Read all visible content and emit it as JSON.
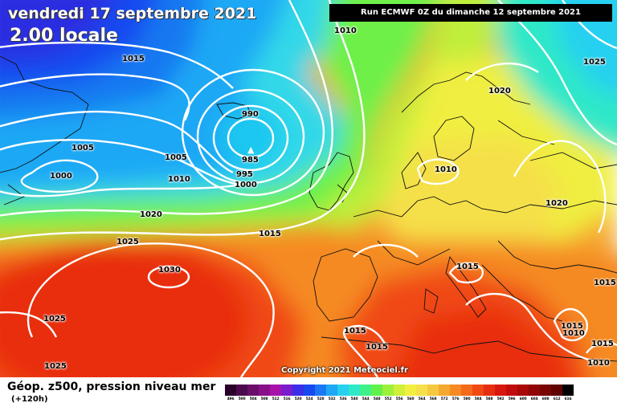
{
  "header": {
    "valid_date": "vendredi 17 septembre 2021",
    "valid_time": "2.00 locale",
    "run_info": "Run ECMWF 0Z du dimanche 12 septembre 2021"
  },
  "footer": {
    "field_title": "Géop. z500, pression niveau mer",
    "lead_time": "(+120h)",
    "copyright": "Copyright 2021 Meteociel.fr"
  },
  "pressure_labels": [
    {
      "text": "1010",
      "color": "#000"
    },
    {
      "text": "1015",
      "color": "#000"
    },
    {
      "text": "1025",
      "color": "#000"
    },
    {
      "text": "1020",
      "color": "#000"
    },
    {
      "text": "990"
    },
    {
      "text": "985"
    },
    {
      "text": "995"
    },
    {
      "text": "1000"
    },
    {
      "text": "1005"
    },
    {
      "text": "1000"
    },
    {
      "text": "1005"
    },
    {
      "text": "1010"
    },
    {
      "text": "1010"
    },
    {
      "text": "1020"
    },
    {
      "text": "1015"
    },
    {
      "text": "1025"
    },
    {
      "text": "1020"
    },
    {
      "text": "1030"
    },
    {
      "text": "1015"
    },
    {
      "text": "1015"
    },
    {
      "text": "1025"
    },
    {
      "text": "1015"
    },
    {
      "text": "1015"
    },
    {
      "text": "1015"
    },
    {
      "text": "1025"
    },
    {
      "text": "1015"
    },
    {
      "text": "1010"
    },
    {
      "text": "1010"
    }
  ],
  "legend": {
    "values": [
      "496",
      "500",
      "504",
      "508",
      "512",
      "516",
      "520",
      "524",
      "528",
      "532",
      "536",
      "540",
      "544",
      "548",
      "552",
      "556",
      "560",
      "564",
      "568",
      "572",
      "576",
      "580",
      "584",
      "588",
      "592",
      "596",
      "600",
      "604",
      "608",
      "612",
      "616"
    ],
    "colors": [
      "#2a002a",
      "#4b0a4b",
      "#6a0d6a",
      "#8a108a",
      "#a812a8",
      "#7a1ccc",
      "#3a2ee8",
      "#1848f0",
      "#1a78f5",
      "#1ea8f5",
      "#28d0f0",
      "#2ee8c8",
      "#3ef08a",
      "#62f04a",
      "#9cf03a",
      "#cfef3a",
      "#f2ef40",
      "#f5e04a",
      "#f5c840",
      "#f5a830",
      "#f58a22",
      "#f56a18",
      "#f04a12",
      "#e82e10",
      "#d81810",
      "#c00c0c",
      "#a80808",
      "#900606",
      "#780404",
      "#600202",
      "#000000"
    ]
  }
}
